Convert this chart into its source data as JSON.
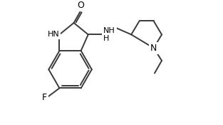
{
  "background_color": "#ffffff",
  "line_color": "#3a3a3a",
  "text_color": "#000000",
  "line_width": 1.4,
  "font_size": 9,
  "figsize": [
    3.13,
    1.75
  ],
  "dpi": 100,
  "xlim": [
    0,
    10
  ],
  "ylim": [
    0,
    6.5
  ]
}
